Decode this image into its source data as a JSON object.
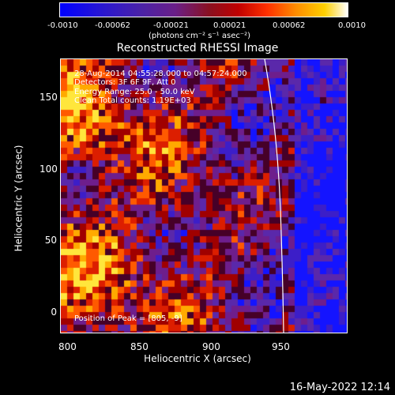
{
  "colorbar": {
    "ticks": [
      "-0.0010",
      "-0.00062",
      "-0.00021",
      "0.00021",
      "0.00062",
      "0.0010"
    ],
    "units": "(photons cm⁻² s⁻¹ asec⁻²)"
  },
  "title": "Reconstructed RHESSI Image",
  "info": {
    "time": "28-Aug-2014 04:55:28.000 to 04:57:24.000",
    "detectors": "Detectors: 3F 6F 9F, Att 0",
    "energy": "Energy Range: 25.0 - 50.0 keV",
    "clean": "Clean     Total counts: 1.19E+03",
    "peak": "Position of Peak = [805, -9]"
  },
  "axes": {
    "xlabel": "Heliocentric X (arcsec)",
    "ylabel": "Heliocentric Y (arcsec)",
    "xticks": [
      "800",
      "850",
      "900",
      "950"
    ],
    "yticks": [
      "150",
      "100",
      "50",
      "0"
    ]
  },
  "footer_date": "16-May-2022 12:14",
  "colors": {
    "background": "#000000",
    "limb": "#ffffff"
  }
}
